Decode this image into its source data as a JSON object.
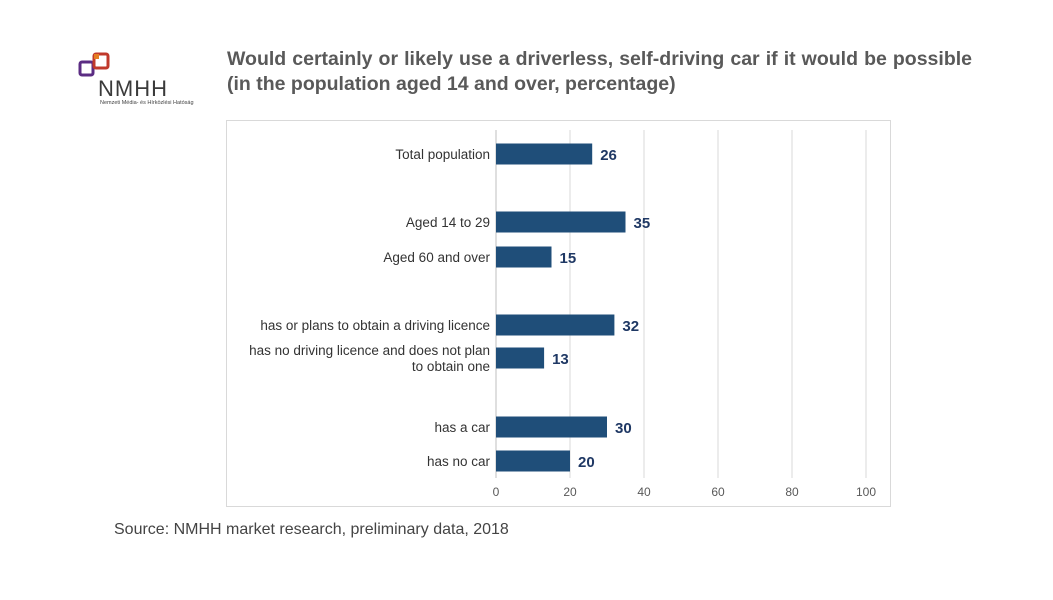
{
  "logo": {
    "wordmark": "NMHH",
    "subtitle": "Nemzeti Média- és Hírközlési Hatóság"
  },
  "source": "Source: NMHH market research, preliminary data, 2018",
  "colors": {
    "bar": "#1f4e79",
    "title": "#595959",
    "grid": "#d9d9d9",
    "label": "#333333",
    "value": "#1f3864"
  },
  "chart_data": {
    "type": "bar",
    "orientation": "horizontal",
    "title": "Would certainly or likely use a driverless, self-driving car if it would be possible (in the population aged 14 and over, percentage)",
    "categories": [
      "Total population",
      "Aged 14 to 29",
      "Aged 60 and over",
      "has or plans to obtain a driving licence",
      "has no driving licence and does not plan to obtain one",
      "has a car",
      "has no car"
    ],
    "values": [
      26,
      35,
      15,
      32,
      13,
      30,
      20
    ],
    "groups": [
      [
        0
      ],
      [
        1,
        2
      ],
      [
        3,
        4
      ],
      [
        5,
        6
      ]
    ],
    "xlim": [
      0,
      100
    ],
    "xticks": [
      0,
      20,
      40,
      60,
      80,
      100
    ],
    "data_labels": true,
    "grid": "vertical",
    "legend": "none"
  }
}
